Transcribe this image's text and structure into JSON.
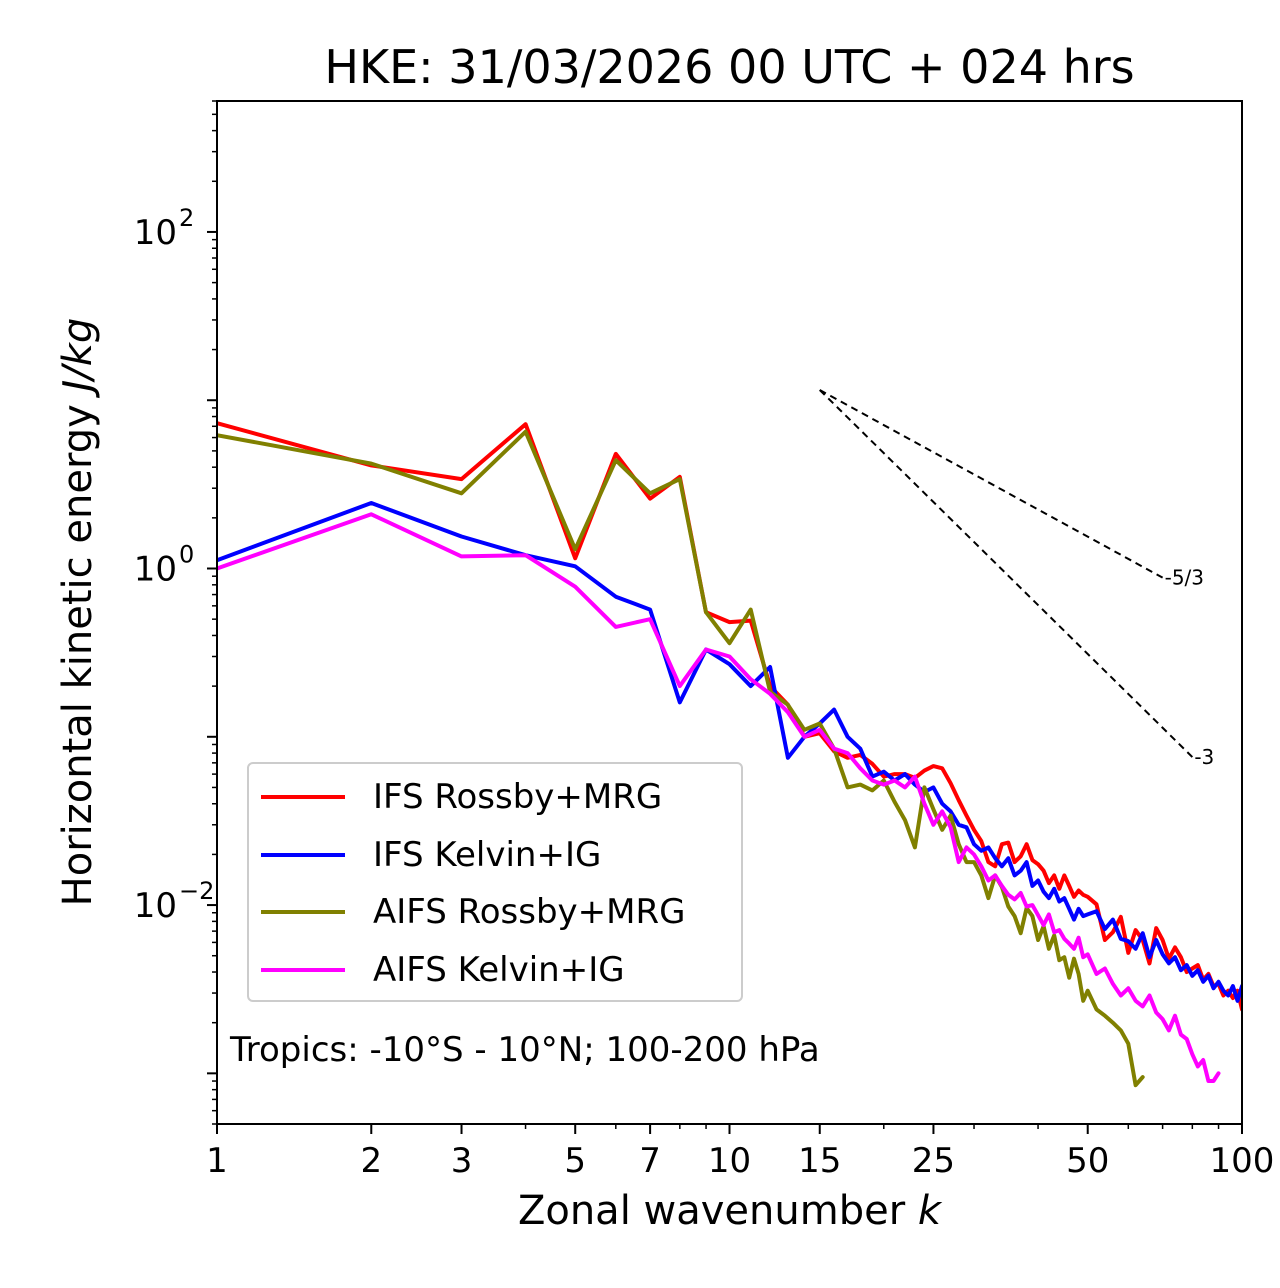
{
  "chart_data": {
    "type": "line",
    "title": "HKE: 31/03/2026 00 UTC + 024 hrs",
    "xlabel": "Zonal wavenumber",
    "xlabel_var": "k",
    "ylabel": "Horizontal kinetic energy",
    "ylabel_units": "J/kg",
    "xscale": "log",
    "yscale": "log",
    "xlim": [
      1,
      100
    ],
    "ylim": [
      0.0005,
      600
    ],
    "xticks": [
      1,
      2,
      3,
      5,
      7,
      10,
      15,
      25,
      50,
      100
    ],
    "xtick_labels": [
      "1",
      "2",
      "3",
      "5",
      "7",
      "10",
      "15",
      "25",
      "50",
      "100"
    ],
    "ytick_mantissa": "10",
    "yticks": [
      {
        "value": 100,
        "exponent": "2"
      },
      {
        "value": 1,
        "exponent": "0"
      },
      {
        "value": 0.01,
        "exponent": "−2"
      }
    ],
    "legend_position": "lower-left",
    "annotation": "Tropics: -10°S - 10°N; 100-200 hPa",
    "reference_slopes": [
      {
        "label": "-5/3",
        "slope": -1.6667,
        "x_start": 15,
        "y_start": 11.5,
        "x_end": 70
      },
      {
        "label": "-3",
        "slope": -3,
        "x_start": 15,
        "y_start": 11.5,
        "x_end": 80
      }
    ],
    "series": [
      {
        "name": "IFS Rossby+MRG",
        "color": "#ff0000",
        "x": [
          1,
          2,
          3,
          4,
          5,
          6,
          7,
          8,
          9,
          10,
          11,
          12,
          13,
          14,
          15,
          16,
          17,
          18,
          19,
          20,
          21,
          22,
          23,
          24,
          25,
          26,
          27,
          28,
          29,
          30,
          31,
          32,
          33,
          34,
          35,
          36,
          37,
          38,
          39,
          40,
          41,
          42,
          43,
          44,
          45,
          46,
          47,
          48,
          49,
          50,
          52,
          54,
          56,
          58,
          60,
          62,
          64,
          66,
          68,
          70,
          72,
          74,
          76,
          78,
          80,
          82,
          84,
          86,
          88,
          90,
          92,
          94,
          96,
          98,
          100
        ],
        "values": [
          7.3,
          4.1,
          3.4,
          7.2,
          1.15,
          4.8,
          2.6,
          3.5,
          0.55,
          0.48,
          0.49,
          0.2,
          0.155,
          0.1,
          0.105,
          0.082,
          0.075,
          0.078,
          0.069,
          0.058,
          0.06,
          0.06,
          0.057,
          0.063,
          0.067,
          0.065,
          0.053,
          0.042,
          0.034,
          0.028,
          0.024,
          0.018,
          0.017,
          0.023,
          0.0235,
          0.018,
          0.0195,
          0.023,
          0.0185,
          0.0175,
          0.016,
          0.0135,
          0.015,
          0.0125,
          0.015,
          0.013,
          0.0112,
          0.0122,
          0.0115,
          0.0112,
          0.0101,
          0.0062,
          0.0069,
          0.0085,
          0.0052,
          0.0071,
          0.0062,
          0.0045,
          0.0073,
          0.0062,
          0.0048,
          0.0056,
          0.0049,
          0.004,
          0.0042,
          0.0044,
          0.0036,
          0.0039,
          0.0033,
          0.0034,
          0.0029,
          0.0031,
          0.0028,
          0.0031,
          0.0024
        ]
      },
      {
        "name": "IFS Kelvin+IG",
        "color": "#0000ff",
        "x": [
          1,
          2,
          3,
          4,
          5,
          6,
          7,
          8,
          9,
          10,
          11,
          12,
          13,
          14,
          15,
          16,
          17,
          18,
          19,
          20,
          21,
          22,
          23,
          24,
          25,
          26,
          27,
          28,
          29,
          30,
          31,
          32,
          33,
          34,
          35,
          36,
          37,
          38,
          39,
          40,
          41,
          42,
          43,
          44,
          45,
          46,
          47,
          48,
          49,
          50,
          52,
          54,
          56,
          58,
          60,
          62,
          64,
          66,
          68,
          70,
          72,
          74,
          76,
          78,
          80,
          82,
          84,
          86,
          88,
          90,
          92,
          94,
          96,
          98,
          100
        ],
        "values": [
          1.12,
          2.45,
          1.55,
          1.2,
          1.03,
          0.68,
          0.57,
          0.16,
          0.33,
          0.27,
          0.2,
          0.26,
          0.075,
          0.1,
          0.12,
          0.145,
          0.1,
          0.085,
          0.058,
          0.062,
          0.055,
          0.06,
          0.052,
          0.047,
          0.05,
          0.04,
          0.036,
          0.03,
          0.029,
          0.023,
          0.021,
          0.022,
          0.019,
          0.017,
          0.019,
          0.015,
          0.016,
          0.018,
          0.013,
          0.014,
          0.012,
          0.011,
          0.0125,
          0.0105,
          0.011,
          0.0095,
          0.0082,
          0.0095,
          0.0086,
          0.0088,
          0.0092,
          0.0072,
          0.0082,
          0.0063,
          0.0061,
          0.0055,
          0.0068,
          0.0049,
          0.0062,
          0.0051,
          0.0045,
          0.0049,
          0.0041,
          0.0044,
          0.0038,
          0.0041,
          0.0035,
          0.0038,
          0.0032,
          0.0035,
          0.0031,
          0.0029,
          0.0033,
          0.0027,
          0.0033
        ]
      },
      {
        "name": "AIFS Rossby+MRG",
        "color": "#808000",
        "x": [
          1,
          2,
          3,
          4,
          5,
          6,
          7,
          8,
          9,
          10,
          11,
          12,
          13,
          14,
          15,
          16,
          17,
          18,
          19,
          20,
          21,
          22,
          23,
          24,
          25,
          26,
          27,
          28,
          29,
          30,
          31,
          32,
          33,
          34,
          35,
          36,
          37,
          38,
          39,
          40,
          41,
          42,
          43,
          44,
          45,
          46,
          47,
          48,
          49,
          50,
          52,
          54,
          56,
          58,
          60,
          62,
          64
        ],
        "values": [
          6.2,
          4.2,
          2.8,
          6.5,
          1.3,
          4.4,
          2.8,
          3.4,
          0.55,
          0.36,
          0.57,
          0.185,
          0.155,
          0.11,
          0.12,
          0.085,
          0.05,
          0.052,
          0.048,
          0.055,
          0.041,
          0.032,
          0.022,
          0.05,
          0.037,
          0.028,
          0.034,
          0.023,
          0.018,
          0.018,
          0.015,
          0.011,
          0.015,
          0.0128,
          0.0098,
          0.0086,
          0.0068,
          0.0096,
          0.0086,
          0.0062,
          0.0075,
          0.0055,
          0.0066,
          0.0047,
          0.0049,
          0.0037,
          0.0048,
          0.0039,
          0.0027,
          0.0031,
          0.0024,
          0.0022,
          0.002,
          0.0018,
          0.0015,
          0.00085,
          0.00095
        ]
      },
      {
        "name": "AIFS Kelvin+IG",
        "color": "#ff00ff",
        "x": [
          1,
          2,
          3,
          4,
          5,
          6,
          7,
          8,
          9,
          10,
          11,
          12,
          13,
          14,
          15,
          16,
          17,
          18,
          19,
          20,
          21,
          22,
          23,
          24,
          25,
          26,
          27,
          28,
          29,
          30,
          31,
          32,
          33,
          34,
          35,
          36,
          37,
          38,
          39,
          40,
          41,
          42,
          43,
          44,
          45,
          46,
          47,
          48,
          49,
          50,
          52,
          54,
          56,
          58,
          60,
          62,
          64,
          66,
          68,
          70,
          72,
          74,
          76,
          78,
          80,
          82,
          84,
          86,
          88,
          90
        ],
        "values": [
          1.0,
          2.1,
          1.18,
          1.2,
          0.78,
          0.45,
          0.5,
          0.2,
          0.33,
          0.3,
          0.22,
          0.18,
          0.14,
          0.1,
          0.11,
          0.085,
          0.08,
          0.065,
          0.055,
          0.052,
          0.055,
          0.05,
          0.058,
          0.04,
          0.03,
          0.036,
          0.029,
          0.018,
          0.022,
          0.02,
          0.017,
          0.014,
          0.015,
          0.013,
          0.0115,
          0.0108,
          0.0118,
          0.0098,
          0.01,
          0.0087,
          0.0076,
          0.0088,
          0.0069,
          0.0071,
          0.0063,
          0.0059,
          0.0055,
          0.0064,
          0.0049,
          0.0051,
          0.0039,
          0.0042,
          0.0034,
          0.0029,
          0.0032,
          0.0027,
          0.0025,
          0.0029,
          0.0023,
          0.0021,
          0.0018,
          0.0022,
          0.0017,
          0.0016,
          0.0013,
          0.0011,
          0.0012,
          0.0009,
          0.0009,
          0.001
        ]
      }
    ]
  }
}
